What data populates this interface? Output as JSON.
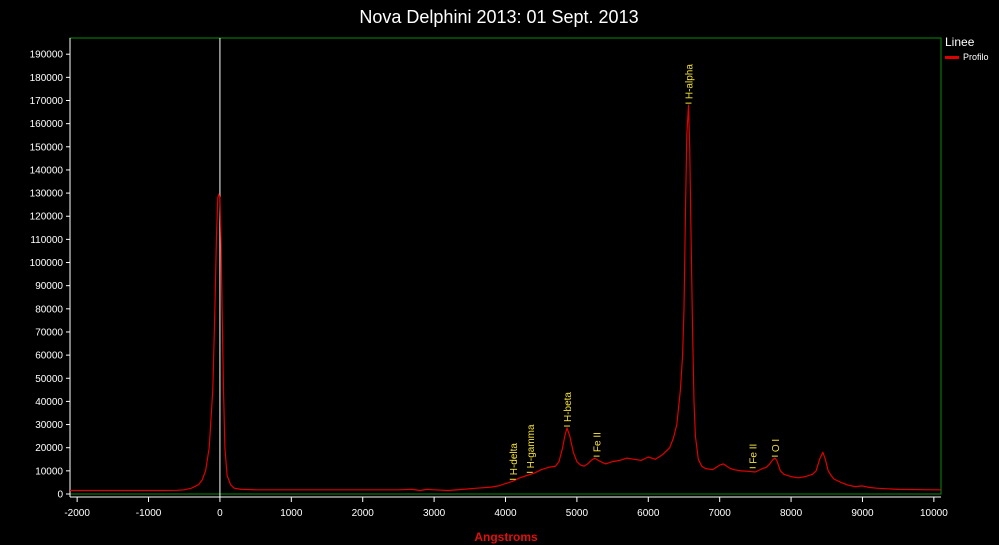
{
  "chart_data": {
    "type": "line",
    "title": "Nova Delphini 2013: 01 Sept. 2013",
    "xlabel": "Angstroms",
    "ylabel": "",
    "xlim": [
      -2100,
      10100
    ],
    "ylim": [
      0,
      197000
    ],
    "x_ticks": [
      -2000,
      -1000,
      0,
      1000,
      2000,
      3000,
      4000,
      5000,
      6000,
      7000,
      8000,
      9000,
      10000
    ],
    "y_ticks": [
      0,
      10000,
      20000,
      30000,
      40000,
      50000,
      60000,
      70000,
      80000,
      90000,
      100000,
      110000,
      120000,
      130000,
      140000,
      150000,
      160000,
      170000,
      180000,
      190000
    ],
    "grid": false,
    "legend": {
      "title": "Linee",
      "placement": "right"
    },
    "series": [
      {
        "name": "Profilo",
        "color": "#e00000",
        "x": [
          -2100,
          -1500,
          -1000,
          -800,
          -600,
          -500,
          -400,
          -300,
          -250,
          -200,
          -150,
          -100,
          -70,
          -50,
          -30,
          -15,
          0,
          15,
          30,
          50,
          70,
          100,
          150,
          200,
          300,
          500,
          1000,
          1500,
          2000,
          2500,
          2700,
          2800,
          2900,
          3000,
          3200,
          3400,
          3600,
          3800,
          3900,
          4000,
          4100,
          4200,
          4300,
          4400,
          4500,
          4600,
          4700,
          4750,
          4800,
          4830,
          4861,
          4900,
          4950,
          5000,
          5050,
          5100,
          5150,
          5200,
          5250,
          5300,
          5400,
          5500,
          5600,
          5700,
          5800,
          5900,
          6000,
          6100,
          6200,
          6300,
          6350,
          6400,
          6450,
          6480,
          6500,
          6520,
          6540,
          6563,
          6580,
          6600,
          6620,
          6640,
          6660,
          6700,
          6750,
          6800,
          6900,
          7000,
          7050,
          7100,
          7150,
          7200,
          7300,
          7400,
          7500,
          7600,
          7650,
          7700,
          7750,
          7773,
          7800,
          7850,
          7900,
          8000,
          8100,
          8200,
          8300,
          8350,
          8400,
          8446,
          8480,
          8520,
          8560,
          8600,
          8700,
          8800,
          8900,
          9000,
          9100,
          9200,
          9500,
          10000,
          10100
        ],
        "values": [
          1500,
          1500,
          1500,
          1500,
          1600,
          1800,
          2500,
          4000,
          6000,
          10000,
          20000,
          45000,
          80000,
          110000,
          128000,
          129500,
          128000,
          110000,
          80000,
          45000,
          20000,
          8000,
          4000,
          2500,
          2000,
          1800,
          1800,
          1800,
          1800,
          1800,
          2000,
          1500,
          2000,
          1800,
          1500,
          2000,
          2500,
          3000,
          3500,
          4500,
          5500,
          7000,
          8000,
          9000,
          10500,
          11500,
          12000,
          14000,
          20000,
          25000,
          28500,
          25000,
          18000,
          14000,
          12500,
          12000,
          13000,
          14500,
          15500,
          14500,
          13000,
          14000,
          14500,
          15500,
          15000,
          14500,
          16000,
          15000,
          17000,
          20000,
          24000,
          30000,
          45000,
          60000,
          80000,
          120000,
          155000,
          168000,
          150000,
          110000,
          70000,
          40000,
          25000,
          15000,
          12000,
          11000,
          10500,
          12500,
          13000,
          12000,
          11000,
          10500,
          10000,
          9800,
          9500,
          11000,
          11500,
          13000,
          15000,
          15500,
          14500,
          10000,
          8500,
          7500,
          7000,
          7500,
          8500,
          10000,
          15000,
          18000,
          15000,
          10000,
          8000,
          6500,
          5000,
          3800,
          3200,
          3500,
          2800,
          2500,
          2000,
          1800,
          1800
        ]
      }
    ],
    "annotations": [
      {
        "label": "H-delta",
        "x": 4102,
        "y": 5500
      },
      {
        "label": "H-gamma",
        "x": 4340,
        "y": 8500
      },
      {
        "label": "H-beta",
        "x": 4861,
        "y": 28500
      },
      {
        "label": "Fe II",
        "x": 5276,
        "y": 15500
      },
      {
        "label": "H-alpha",
        "x": 6563,
        "y": 168000
      },
      {
        "label": "Fe II",
        "x": 7462,
        "y": 10500
      },
      {
        "label": "O I",
        "x": 7773,
        "y": 15500
      }
    ],
    "reference_line_x": 0
  },
  "colors": {
    "background": "#000000",
    "plot_border": "#0a8a0a",
    "axis": "#ffffff",
    "series": "#e00000",
    "annotation": "#f5e13a",
    "xlabel": "#e01010",
    "reference_line": "#ffffff"
  }
}
